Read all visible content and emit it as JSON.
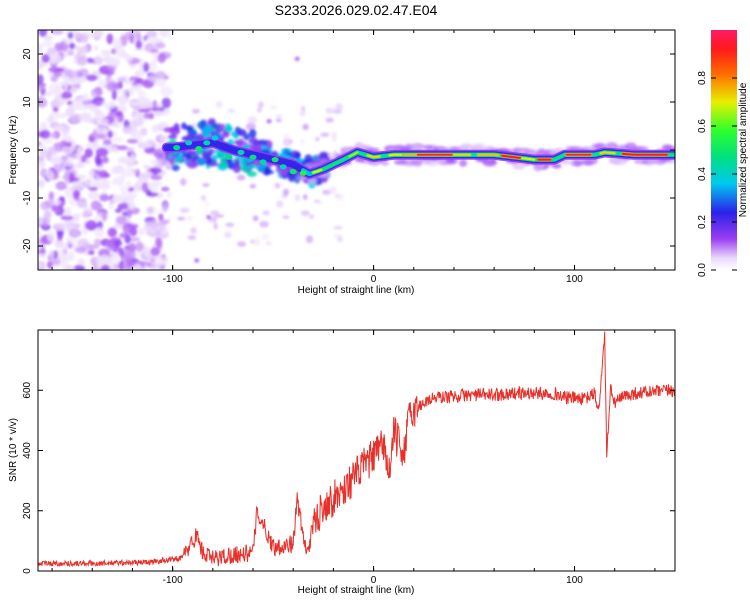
{
  "title": "S233.2026.029.02.47.E04",
  "chart_data": [
    {
      "type": "heatmap",
      "xlabel": "Height of straight line (km)",
      "ylabel": "Frequency (Hz)",
      "xlim": [
        -167,
        150
      ],
      "ylim": [
        -25,
        25
      ],
      "xticks": [
        -100,
        0,
        100
      ],
      "yticks": [
        -20,
        -10,
        0,
        10,
        20
      ],
      "ridge": {
        "x": [
          -100,
          -90,
          -80,
          -70,
          -60,
          -50,
          -40,
          -32,
          -25,
          -15,
          -8,
          0,
          10,
          20,
          40,
          60,
          70,
          80,
          90,
          95,
          110,
          115,
          130,
          148
        ],
        "freq": [
          0.5,
          1,
          1.5,
          0,
          -1,
          -2,
          -3,
          -5,
          -4,
          -2,
          -0.5,
          -1.5,
          -1,
          -1,
          -1,
          -1,
          -1.5,
          -2,
          -2,
          -1,
          -1,
          -0.5,
          -1,
          -1
        ]
      },
      "colorbar": {
        "label": "Normalized spectral amplitude",
        "ticks": [
          0.0,
          0.2,
          0.4,
          0.6,
          0.8
        ],
        "tick_labels": [
          "0.0",
          "0.2",
          "0.4",
          "0.6",
          "0.8"
        ],
        "range": [
          0,
          1
        ]
      }
    },
    {
      "type": "line",
      "xlabel": "Height of straight line (km)",
      "ylabel": "SNR (10 * v/v)",
      "xlim": [
        -167,
        150
      ],
      "ylim": [
        0,
        800
      ],
      "xticks": [
        -100,
        0,
        100
      ],
      "yticks": [
        0,
        200,
        400,
        600
      ],
      "line_color": "#e8302a",
      "series": [
        {
          "name": "SNR",
          "x": [
            -167,
            -140,
            -110,
            -95,
            -88,
            -85,
            -80,
            -70,
            -60,
            -58,
            -50,
            -40,
            -38,
            -35,
            -33,
            -30,
            -25,
            -20,
            -15,
            -10,
            -5,
            0,
            5,
            8,
            10,
            15,
            18,
            20,
            25,
            30,
            40,
            50,
            60,
            70,
            80,
            90,
            95,
            100,
            105,
            110,
            112,
            115,
            116,
            118,
            120,
            125,
            130,
            140,
            150
          ],
          "y": [
            25,
            25,
            30,
            45,
            120,
            60,
            40,
            55,
            60,
            200,
            80,
            90,
            240,
            110,
            60,
            150,
            220,
            240,
            270,
            310,
            350,
            380,
            420,
            320,
            460,
            390,
            520,
            530,
            560,
            575,
            580,
            585,
            585,
            590,
            590,
            590,
            575,
            575,
            570,
            590,
            530,
            780,
            390,
            600,
            560,
            580,
            590,
            595,
            600
          ]
        }
      ]
    }
  ]
}
